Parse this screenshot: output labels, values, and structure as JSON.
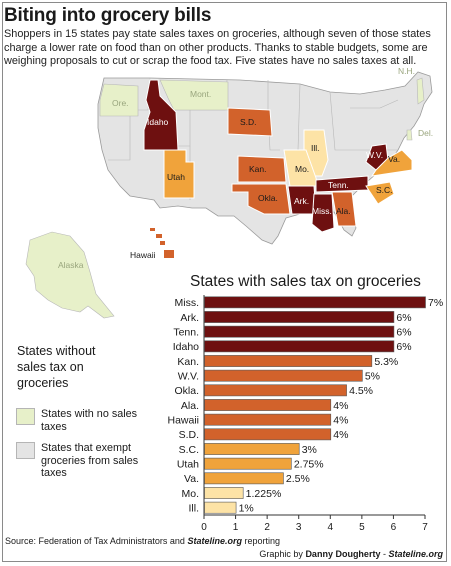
{
  "header": {
    "title": "Biting into grocery bills",
    "intro": "Shoppers in 15 states pay state sales taxes on groceries, although seven of those states charge a lower rate on food than on other products. Thanks to stable budgets, some are weighing proposals to cut or scrap the food tax. Five states have no sales taxes at all."
  },
  "map": {
    "labels": {
      "idaho": "Idaho",
      "utah": "Utah",
      "sd": "S.D.",
      "kan": "Kan.",
      "okla": "Okla.",
      "ill": "Ill.",
      "mo": "Mo.",
      "ark": "Ark.",
      "tenn": "Tenn.",
      "miss": "Miss.",
      "ala": "Ala.",
      "sc": "S.C.",
      "wv": "W.V.",
      "va": "Va.",
      "hawaii": "Hawaii",
      "ore": "Ore.",
      "mont": "Mont.",
      "alaska": "Alaska",
      "nh": "N.H.",
      "del": "Del."
    }
  },
  "colors": {
    "dark": "#6e1010",
    "mid": "#d2622b",
    "orange": "#f0a33b",
    "light": "#fde3a6",
    "no_tax": "#e7f0c9",
    "exempt": "#e4e4e4",
    "bar_outline": "#555555"
  },
  "legend": {
    "title": "States without sales tax on groceries",
    "items": [
      {
        "label": "States with no sales taxes",
        "color": "#e7f0c9"
      },
      {
        "label": "States that exempt groceries from sales taxes",
        "color": "#e4e4e4"
      }
    ]
  },
  "chart_data": {
    "type": "bar",
    "orientation": "horizontal",
    "title": "States with sales tax on groceries",
    "categories": [
      "Miss.",
      "Ark.",
      "Tenn.",
      "Idaho",
      "Kan.",
      "W.V.",
      "Okla.",
      "Ala.",
      "Hawaii",
      "S.D.",
      "S.C.",
      "Utah",
      "Va.",
      "Mo.",
      "Ill."
    ],
    "values": [
      7,
      6,
      6,
      6,
      5.3,
      5,
      4.5,
      4,
      4,
      4,
      3,
      2.75,
      2.5,
      1.225,
      1
    ],
    "value_labels": [
      "7%",
      "6%",
      "6%",
      "6%",
      "5.3%",
      "5%",
      "4.5%",
      "4%",
      "4%",
      "4%",
      "3%",
      "2.75%",
      "2.5%",
      "1.225%",
      "1%"
    ],
    "bar_colors": [
      "#6e1010",
      "#6e1010",
      "#6e1010",
      "#6e1010",
      "#d2622b",
      "#d2622b",
      "#d2622b",
      "#d2622b",
      "#d2622b",
      "#d2622b",
      "#f0a33b",
      "#f0a33b",
      "#f0a33b",
      "#fde3a6",
      "#fde3a6"
    ],
    "xlim": [
      0,
      7
    ],
    "xticks": [
      0,
      1,
      2,
      3,
      4,
      5,
      6,
      7
    ],
    "grid": false
  },
  "footer": {
    "source_prefix": "Source: Federation of Tax Administrators and",
    "source_em": "Stateline.org",
    "source_suffix": "reporting",
    "credit_prefix": "Graphic by",
    "credit_name": "Danny Dougherty",
    "credit_sep": "-",
    "credit_org": "Stateline.org"
  }
}
